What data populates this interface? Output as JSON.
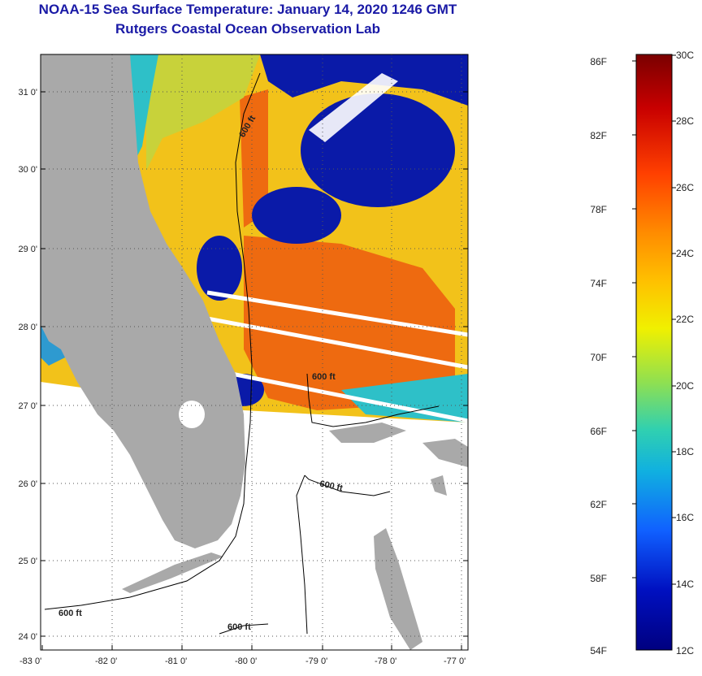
{
  "title": {
    "line1": "NOAA-15 Sea Surface Temperature:  January 14, 2020 1246 GMT",
    "line2": "Rutgers Coastal Ocean Observation Lab"
  },
  "map": {
    "lat_labels": [
      "31 0'",
      "30 0'",
      "29 0'",
      "28 0'",
      "27 0'",
      "26 0'",
      "25 0'",
      "24 0'"
    ],
    "lon_labels": [
      "-83 0'",
      "-82 0'",
      "-81 0'",
      "-80 0'",
      "-79 0'",
      "-78 0'",
      "-77 0'"
    ],
    "contour_labels": [
      "600 ft",
      "600 ft",
      "600 ft",
      "600 ft",
      "600 ft"
    ]
  },
  "colorbar": {
    "fahrenheit": [
      "86F",
      "82F",
      "78F",
      "74F",
      "70F",
      "66F",
      "62F",
      "58F",
      "54F"
    ],
    "celsius": [
      "30C",
      "28C",
      "26C",
      "24C",
      "22C",
      "20C",
      "18C",
      "16C",
      "14C",
      "12C"
    ],
    "colors": [
      "#7a0000",
      "#c80000",
      "#ff4000",
      "#ff8c00",
      "#ffc000",
      "#f0f000",
      "#90e050",
      "#30d0b0",
      "#10b0e0",
      "#1060ff",
      "#0010c0",
      "#000080"
    ]
  },
  "colors": {
    "land": "#a9a9a9",
    "title": "#1a1aa6",
    "deep_blue": "#0a1aa8",
    "warm": "#ee6a10",
    "yellow": "#f2c21a",
    "teal": "#2ec0c8"
  }
}
